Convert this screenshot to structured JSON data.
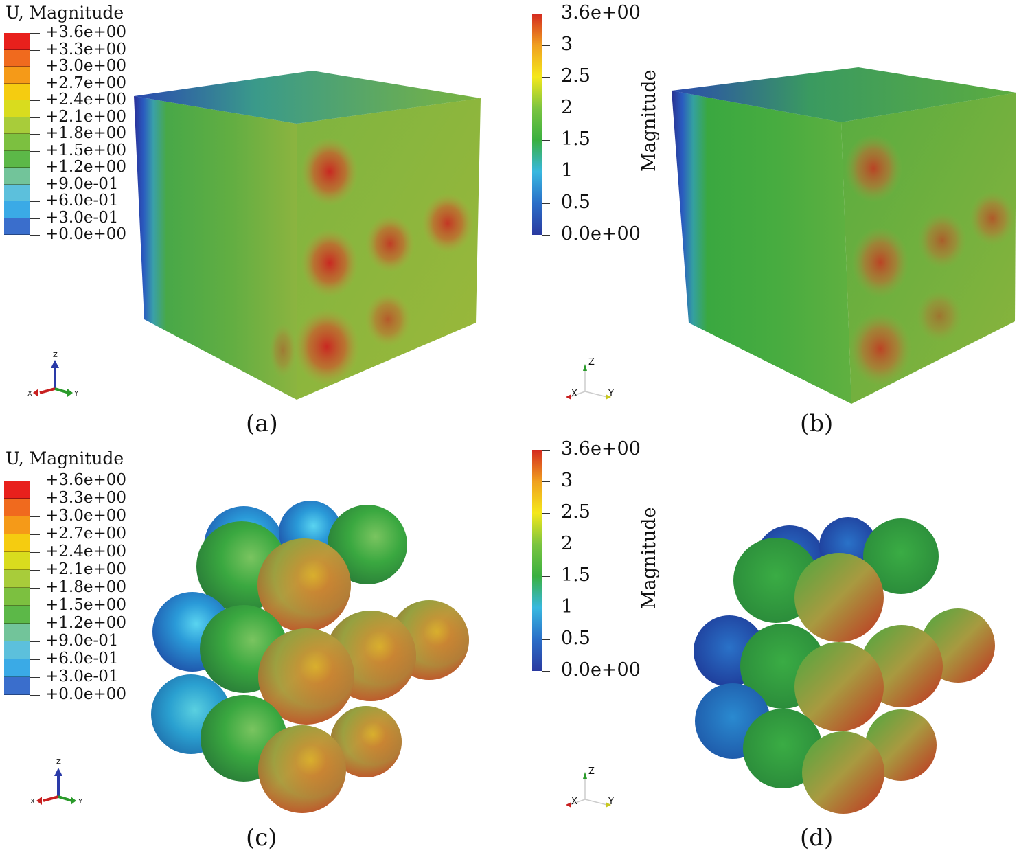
{
  "panels": [
    {
      "id": "a",
      "caption": "(a)",
      "legend_title": "U, Magnitude",
      "style": "abaqus"
    },
    {
      "id": "b",
      "caption": "(b)",
      "legend_title": "Magnitude",
      "style": "paraview"
    },
    {
      "id": "c",
      "caption": "(c)",
      "legend_title": "U, Magnitude",
      "style": "abaqus"
    },
    {
      "id": "d",
      "caption": "(d)",
      "legend_title": "Magnitude",
      "style": "paraview"
    }
  ],
  "abaqus_legend": {
    "labels": [
      "+3.6e+00",
      "+3.3e+00",
      "+3.0e+00",
      "+2.7e+00",
      "+2.4e+00",
      "+2.1e+00",
      "+1.8e+00",
      "+1.5e+00",
      "+1.2e+00",
      "+9.0e-01",
      "+6.0e-01",
      "+3.0e-01",
      "+0.0e+00"
    ],
    "colors": [
      "#e8201c",
      "#f06a1e",
      "#f59a18",
      "#f5cc10",
      "#d9dc1e",
      "#a8cc3a",
      "#7cc040",
      "#5cb848",
      "#72c49a",
      "#5cc0dc",
      "#3aaae6",
      "#3a6ecc",
      "#3a4aa8"
    ]
  },
  "paraview_colorbar": {
    "labels": [
      "3.6e+00",
      "3",
      "2.5",
      "2",
      "1.5",
      "1",
      "0.5",
      "0.0e+00"
    ],
    "stops": [
      "#d42a20",
      "#f0a020",
      "#f4e81a",
      "#7ac440",
      "#3ab040",
      "#38b8e0",
      "#2a6ec8",
      "#2a3aa0"
    ]
  },
  "triad": {
    "x": "X",
    "y": "Y",
    "z": "Z"
  }
}
